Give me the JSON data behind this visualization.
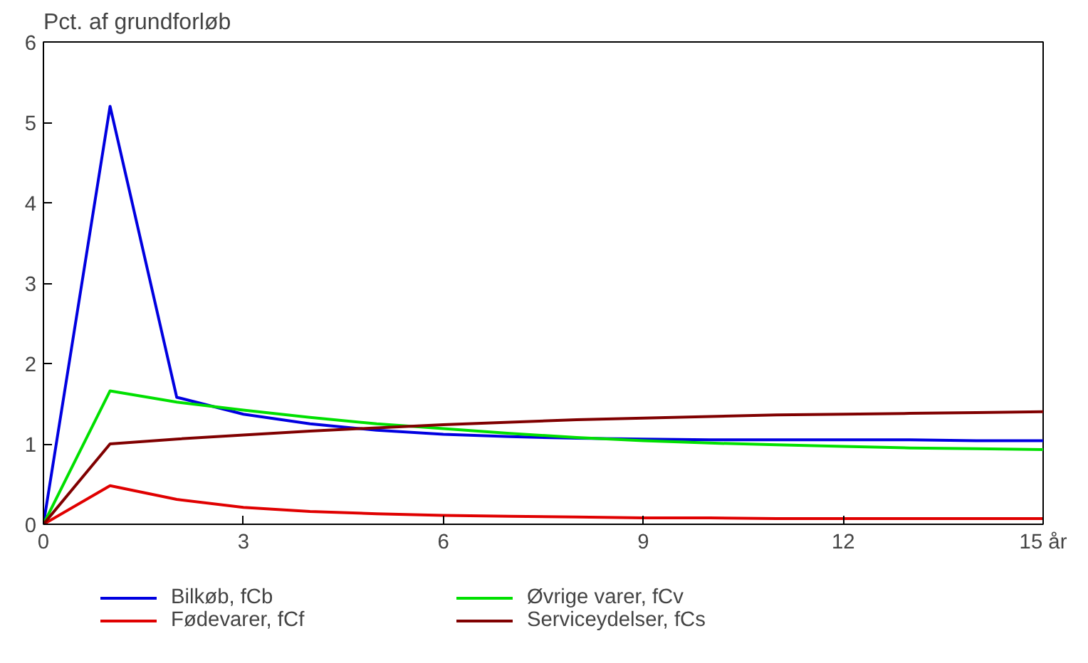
{
  "chart_data": {
    "type": "line",
    "ylabel": "Pct. af grundforløb",
    "x": [
      0,
      1,
      2,
      3,
      4,
      5,
      6,
      7,
      8,
      9,
      10,
      11,
      12,
      13,
      14,
      15
    ],
    "xlim": [
      0,
      15
    ],
    "xticks": [
      0,
      3,
      6,
      9,
      12,
      {
        "value": 15,
        "label": "15 år"
      }
    ],
    "ylim": [
      0,
      6
    ],
    "yticks": [
      0,
      1,
      2,
      3,
      4,
      5,
      6
    ],
    "grid": false,
    "legend": "bottom",
    "line_style": "solid",
    "marker": "none",
    "series": [
      {
        "name": "Bilkøb, fCb",
        "color": "#0000e0",
        "values": [
          0,
          5.2,
          1.58,
          1.37,
          1.25,
          1.17,
          1.12,
          1.09,
          1.07,
          1.06,
          1.05,
          1.05,
          1.05,
          1.05,
          1.04,
          1.04
        ]
      },
      {
        "name": "Fødevarer, fCf",
        "color": "#e00000",
        "values": [
          0,
          0.48,
          0.31,
          0.21,
          0.16,
          0.13,
          0.11,
          0.1,
          0.09,
          0.08,
          0.08,
          0.07,
          0.07,
          0.07,
          0.07,
          0.07
        ]
      },
      {
        "name": "Øvrige varer, fCv",
        "color": "#00e000",
        "values": [
          0,
          1.66,
          1.52,
          1.42,
          1.33,
          1.25,
          1.19,
          1.13,
          1.08,
          1.04,
          1.01,
          0.99,
          0.97,
          0.95,
          0.94,
          0.93
        ]
      },
      {
        "name": "Serviceydelser, fCs",
        "color": "#800000",
        "values": [
          0,
          1.0,
          1.06,
          1.11,
          1.16,
          1.2,
          1.24,
          1.27,
          1.3,
          1.32,
          1.34,
          1.36,
          1.37,
          1.38,
          1.39,
          1.4
        ]
      }
    ]
  }
}
